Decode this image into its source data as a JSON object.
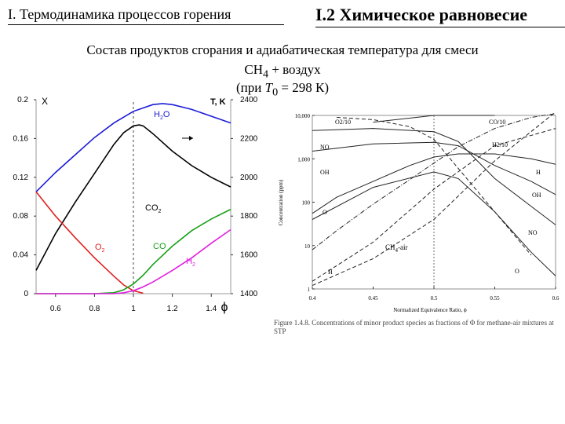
{
  "header": {
    "left_title": "I. Термодинамика процессов горения",
    "right_title": "I.2 Химическое равновесие"
  },
  "subtitle": {
    "line1": "Состав продуктов сгорания и адиабатическая температура для смеси",
    "line2_pre": "CH",
    "line2_sub": "4",
    "line2_post": " + воздух",
    "line3_pre": "(при ",
    "line3_var": "T",
    "line3_sub": "0",
    "line3_post": " = 298 К)"
  },
  "colors": {
    "H2O": "#1c1cd8",
    "T": "#000000",
    "O2": "#e02020",
    "CO": "#18a018",
    "H2": "#e020e0",
    "CO2": "#000000"
  },
  "chart_data": [
    {
      "type": "line",
      "xlabel": "ϕ",
      "left_axis_label": "X",
      "right_axis_label": "T, K",
      "xlim": [
        0.5,
        1.5
      ],
      "ylim": [
        0,
        0.2
      ],
      "y2lim": [
        1400,
        2400
      ],
      "x_ticks": [
        "0.6",
        "0.8",
        "1",
        "1.2",
        "1.4"
      ],
      "y_ticks": [
        "0",
        "0.04",
        "0.08",
        "0.12",
        "0.16",
        "0.2"
      ],
      "y2_ticks": [
        "1400",
        "1600",
        "1800",
        "2000",
        "2200",
        "2400"
      ],
      "vertical_line_x": 1.0,
      "series": [
        {
          "name": "T",
          "axis": "right",
          "x": [
            0.5,
            0.6,
            0.7,
            0.8,
            0.9,
            0.95,
            1.0,
            1.03,
            1.05,
            1.1,
            1.2,
            1.3,
            1.4,
            1.5
          ],
          "y": [
            1520,
            1710,
            1870,
            2020,
            2170,
            2230,
            2265,
            2270,
            2265,
            2225,
            2135,
            2060,
            2000,
            1950
          ]
        },
        {
          "name": "H2O",
          "axis": "left",
          "x": [
            0.5,
            0.6,
            0.7,
            0.8,
            0.9,
            1.0,
            1.1,
            1.15,
            1.2,
            1.3,
            1.4,
            1.5
          ],
          "y": [
            0.105,
            0.125,
            0.143,
            0.161,
            0.176,
            0.188,
            0.195,
            0.196,
            0.195,
            0.19,
            0.183,
            0.176
          ]
        },
        {
          "name": "CO2",
          "axis": "left",
          "x": [],
          "y": []
        },
        {
          "name": "O2",
          "axis": "left",
          "x": [
            0.5,
            0.6,
            0.7,
            0.8,
            0.9,
            0.95,
            1.0,
            1.05
          ],
          "y": [
            0.105,
            0.08,
            0.058,
            0.037,
            0.018,
            0.009,
            0.003,
            0.0005
          ]
        },
        {
          "name": "CO",
          "axis": "left",
          "x": [
            0.5,
            0.8,
            0.9,
            0.95,
            1.0,
            1.05,
            1.1,
            1.2,
            1.3,
            1.4,
            1.5
          ],
          "y": [
            0,
            0,
            0.001,
            0.004,
            0.01,
            0.019,
            0.03,
            0.049,
            0.065,
            0.077,
            0.087
          ]
        },
        {
          "name": "H2",
          "axis": "left",
          "x": [
            0.5,
            0.9,
            0.95,
            1.0,
            1.05,
            1.1,
            1.2,
            1.3,
            1.4,
            1.5
          ],
          "y": [
            0,
            0,
            0.001,
            0.003,
            0.007,
            0.012,
            0.024,
            0.037,
            0.052,
            0.066
          ]
        }
      ],
      "labels": [
        {
          "text": "H2O",
          "main": "H",
          "sub": "2",
          "post": "O"
        },
        {
          "text": "CO2",
          "main": "CO",
          "sub": "2",
          "post": ""
        },
        {
          "text": "O2",
          "main": "O",
          "sub": "2",
          "post": ""
        },
        {
          "text": "CO",
          "main": "CO",
          "sub": "",
          "post": ""
        },
        {
          "text": "H2",
          "main": "H",
          "sub": "2",
          "post": ""
        }
      ]
    },
    {
      "type": "line",
      "xlabel": "Normalized Equivalence Ratio, ϕ",
      "ylabel": "Concentration (ppm)",
      "log_y": true,
      "xlim": [
        0.4,
        0.6
      ],
      "ylim": [
        1,
        10000
      ],
      "x_ticks": [
        "0.4",
        "0.45",
        "0.5",
        "0.55",
        "0.6"
      ],
      "y_ticks": [
        "1",
        "10",
        "100",
        "1,000",
        "10,000"
      ],
      "vertical_line_x": 0.5,
      "inset_label": {
        "main": "CH",
        "sub": "4",
        "post": "-air"
      },
      "series": [
        {
          "name": "O2/10",
          "style": "dash",
          "x": [
            0.42,
            0.45,
            0.48,
            0.5,
            0.52,
            0.55,
            0.58
          ],
          "y": [
            9000,
            8000,
            5500,
            2800,
            600,
            60,
            6
          ]
        },
        {
          "name": "CO/10",
          "style": "dashdot",
          "x": [
            0.4,
            0.42,
            0.45,
            0.48,
            0.5,
            0.52,
            0.55,
            0.58,
            0.6
          ],
          "y": [
            8,
            22,
            90,
            330,
            800,
            1900,
            5000,
            9000,
            11000
          ]
        },
        {
          "name": "H2/10",
          "style": "dash",
          "x": [
            0.4,
            0.45,
            0.5,
            0.55,
            0.6
          ],
          "y": [
            1.5,
            12,
            200,
            2000,
            5000
          ]
        },
        {
          "name": "NO",
          "style": "solid",
          "x": [
            0.4,
            0.45,
            0.5,
            0.52,
            0.55,
            0.58,
            0.6
          ],
          "y": [
            4500,
            5000,
            4200,
            2500,
            350,
            80,
            30
          ]
        },
        {
          "name": "OH",
          "style": "solid",
          "x": [
            0.4,
            0.45,
            0.5,
            0.52,
            0.55,
            0.58,
            0.6
          ],
          "y": [
            1500,
            2200,
            2400,
            2000,
            700,
            300,
            150
          ]
        },
        {
          "name": "H",
          "style": "solid",
          "x": [
            0.4,
            0.42,
            0.45,
            0.48,
            0.5,
            0.52,
            0.55,
            0.58,
            0.6
          ],
          "y": [
            55,
            130,
            300,
            700,
            1100,
            1300,
            1300,
            1000,
            750
          ]
        },
        {
          "name": "O",
          "style": "solid",
          "x": [
            0.4,
            0.45,
            0.5,
            0.52,
            0.55,
            0.58,
            0.6
          ],
          "y": [
            40,
            220,
            500,
            350,
            60,
            7,
            2
          ]
        },
        {
          "name": "H2O",
          "style": "solid",
          "x": [
            0.45,
            0.5,
            0.55
          ],
          "y": [
            7000,
            10000,
            10000
          ]
        },
        {
          "name": "N",
          "style": "dash",
          "x": [
            0.4,
            0.45,
            0.5,
            0.55,
            0.6
          ],
          "y": [
            1.2,
            5,
            40,
            900,
            12000
          ]
        }
      ],
      "series_labels": [
        "O2/10",
        "CO/10",
        "H2/10",
        "NO",
        "OH",
        "H",
        "OH",
        "O",
        "NO",
        "O",
        "H"
      ]
    }
  ],
  "caption": "Figure 1.4.8. Concentrations of minor product species as fractions of Φ for methane-air mixtures at STP"
}
